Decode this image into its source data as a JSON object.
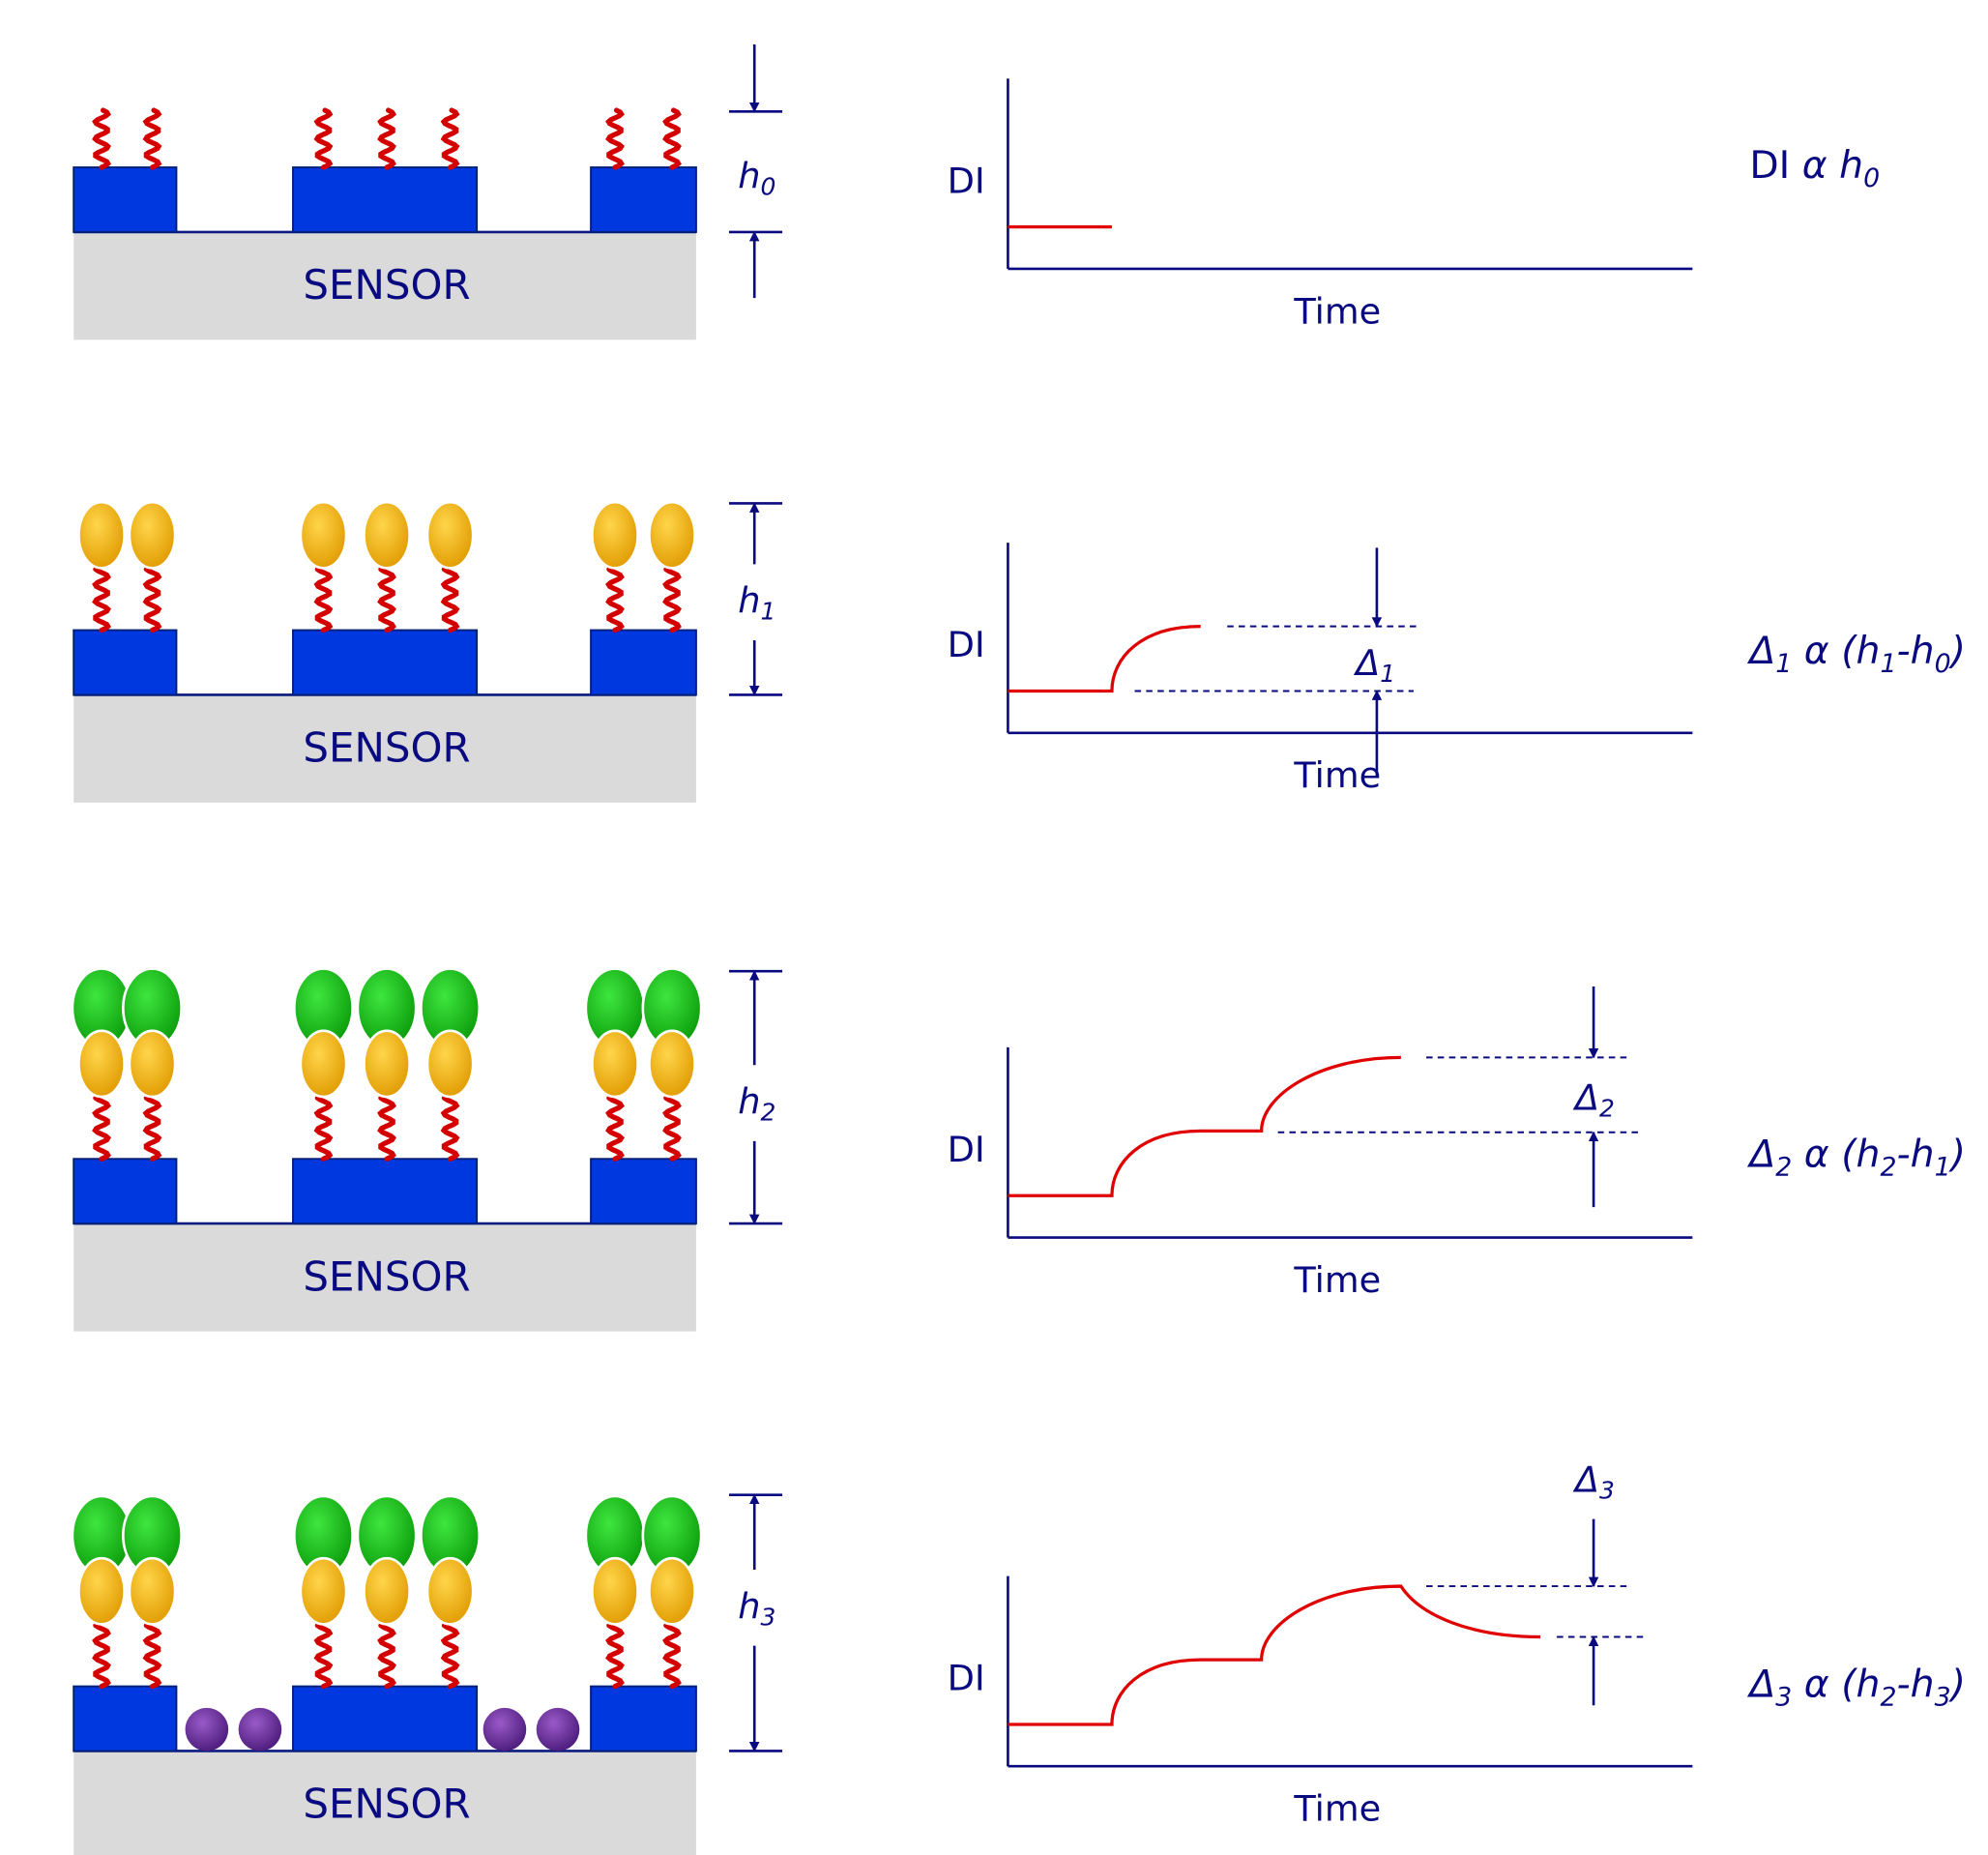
{
  "rows": [
    {
      "sensor": "SENSOR",
      "height_label": [
        {
          "text": "h",
          "italic": true
        },
        {
          "sub": "0"
        }
      ],
      "y_axis": "DI",
      "x_axis": "Time",
      "relation": [
        {
          "text": "DI "
        },
        {
          "text": "α h",
          "italic": true
        },
        {
          "sub": "0"
        }
      ]
    },
    {
      "sensor": "SENSOR",
      "height_label": [
        {
          "text": "h",
          "italic": true
        },
        {
          "sub": "1"
        }
      ],
      "y_axis": "DI",
      "x_axis": "Time",
      "delta_label": [
        {
          "text": "Δ",
          "italic": true
        },
        {
          "sub": "1"
        }
      ],
      "relation": [
        {
          "text": "Δ",
          "italic": true
        },
        {
          "sub": "1"
        },
        {
          "text": " α (h",
          "italic": true
        },
        {
          "sub": "1"
        },
        {
          "text": "-h",
          "italic": true
        },
        {
          "sub": "0"
        },
        {
          "text": ")",
          "italic": true
        }
      ]
    },
    {
      "sensor": "SENSOR",
      "height_label": [
        {
          "text": "h",
          "italic": true
        },
        {
          "sub": "2"
        }
      ],
      "y_axis": "DI",
      "x_axis": "Time",
      "delta_label": [
        {
          "text": "Δ",
          "italic": true
        },
        {
          "sub": "2"
        }
      ],
      "relation": [
        {
          "text": "Δ",
          "italic": true
        },
        {
          "sub": "2"
        },
        {
          "text": " α (h",
          "italic": true
        },
        {
          "sub": "2"
        },
        {
          "text": "-h",
          "italic": true
        },
        {
          "sub": "1"
        },
        {
          "text": ")",
          "italic": true
        }
      ]
    },
    {
      "sensor": "SENSOR",
      "height_label": [
        {
          "text": "h",
          "italic": true
        },
        {
          "sub": "3"
        }
      ],
      "y_axis": "DI",
      "x_axis": "Time",
      "delta_label": [
        {
          "text": "Δ",
          "italic": true
        },
        {
          "sub": "3"
        }
      ],
      "relation": [
        {
          "text": "Δ",
          "italic": true
        },
        {
          "sub": "3"
        },
        {
          "text": " α (h",
          "italic": true
        },
        {
          "sub": "2"
        },
        {
          "text": "-h",
          "italic": true
        },
        {
          "sub": "3"
        },
        {
          "text": ")",
          "italic": true
        }
      ]
    }
  ]
}
